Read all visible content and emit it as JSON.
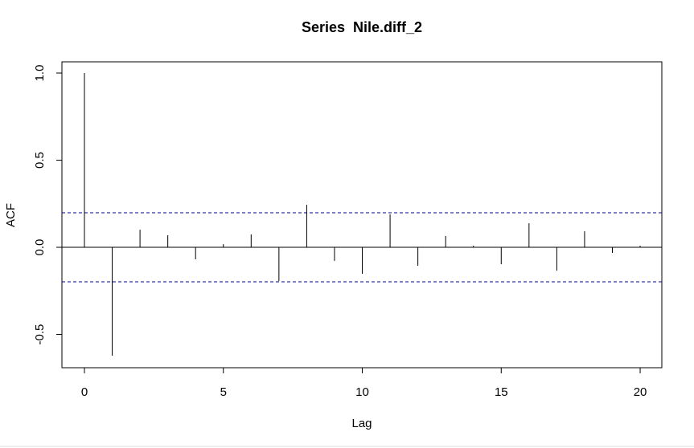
{
  "chart_data": {
    "type": "stem",
    "title": "Series  Nile.diff_2",
    "xlabel": "Lag",
    "ylabel": "ACF",
    "x": [
      0,
      1,
      2,
      3,
      4,
      5,
      6,
      7,
      8,
      9,
      10,
      11,
      12,
      13,
      14,
      15,
      16,
      17,
      18,
      19,
      20
    ],
    "values": [
      1.0,
      -0.622,
      0.101,
      0.069,
      -0.069,
      0.018,
      0.074,
      -0.194,
      0.244,
      -0.078,
      -0.152,
      0.189,
      -0.106,
      0.065,
      0.009,
      -0.097,
      0.138,
      -0.134,
      0.092,
      -0.032,
      0.009
    ],
    "color": "#000000",
    "ci_color": "#00008b",
    "ci_lines": [
      0.198,
      -0.198
    ],
    "xlim": [
      -0.81,
      20.78
    ],
    "xticks": [
      0,
      5,
      10,
      15,
      20
    ],
    "ylim": [
      -0.691,
      1.0645
    ],
    "yticks": [
      {
        "value": -0.5,
        "label": "-0.5"
      },
      {
        "value": 0,
        "label": "0.0"
      },
      0.5,
      {
        "value": 1,
        "label": "1.0"
      }
    ]
  }
}
